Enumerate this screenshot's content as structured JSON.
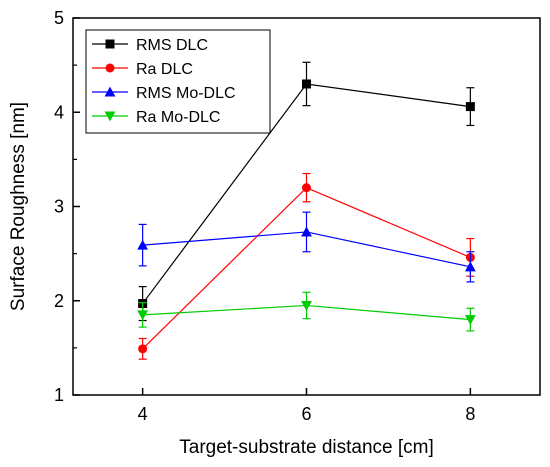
{
  "chart_data": {
    "type": "line",
    "xlabel": "Target-substrate distance [cm]",
    "ylabel": "Surface Roughness [nm]",
    "xlim": [
      3.15,
      8.85
    ],
    "ylim": [
      1,
      5
    ],
    "xticks": [
      4,
      6,
      8
    ],
    "yticks": [
      1,
      2,
      3,
      4,
      5
    ],
    "grid": false,
    "legend_position": "top-left",
    "x": [
      4,
      6,
      8
    ],
    "series": [
      {
        "name": "RMS DLC",
        "color": "#000000",
        "marker": "square",
        "values": [
          1.97,
          4.3,
          4.06
        ],
        "errors": [
          0.18,
          0.23,
          0.2
        ]
      },
      {
        "name": "Ra DLC",
        "color": "#ff0000",
        "marker": "circle",
        "values": [
          1.49,
          3.2,
          2.46
        ],
        "errors": [
          0.11,
          0.15,
          0.2
        ]
      },
      {
        "name": "RMS Mo-DLC",
        "color": "#0000ff",
        "marker": "triangle-up",
        "values": [
          2.59,
          2.73,
          2.36
        ],
        "errors": [
          0.22,
          0.21,
          0.16
        ]
      },
      {
        "name": "Ra Mo-DLC",
        "color": "#00cc00",
        "marker": "triangle-down",
        "values": [
          1.85,
          1.95,
          1.8
        ],
        "errors": [
          0.13,
          0.14,
          0.12
        ]
      }
    ]
  }
}
